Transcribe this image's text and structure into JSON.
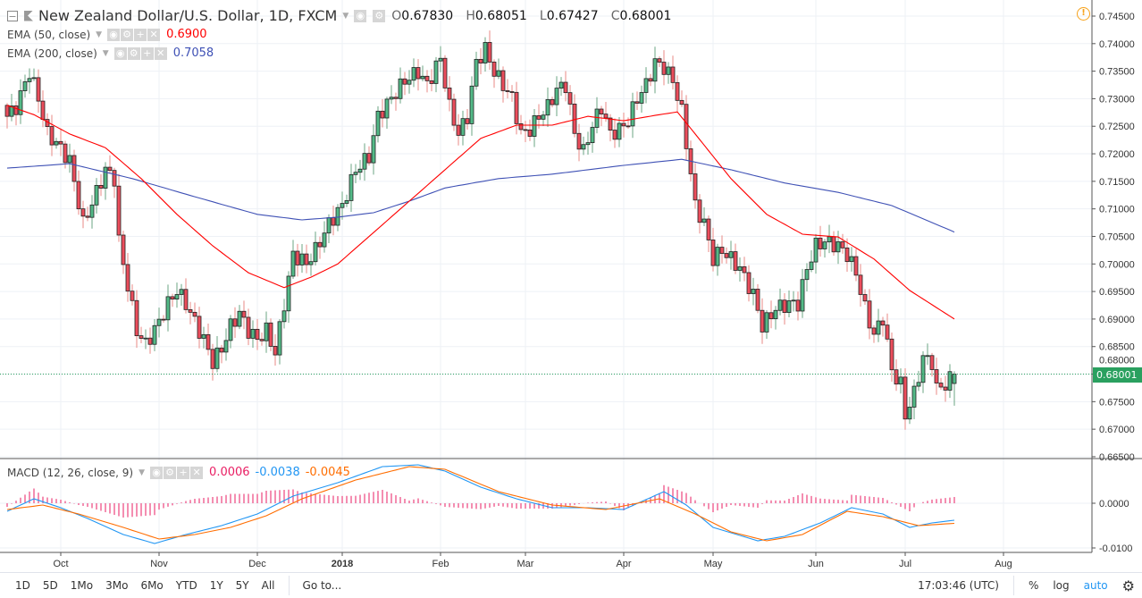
{
  "header": {
    "symbol": "New Zealand Dollar/U.S. Dollar, 1D, FXCM",
    "open_label": "O",
    "open": "0.67830",
    "high_label": "H",
    "high": "0.68051",
    "low_label": "L",
    "low": "0.67427",
    "close_label": "C",
    "close": "0.68001"
  },
  "indicators": {
    "ema50": {
      "label": "EMA (50, close)",
      "value": "0.6900",
      "color": "#ff0000"
    },
    "ema200": {
      "label": "EMA (200, close)",
      "value": "0.7058",
      "color": "#3f51b5"
    },
    "macd": {
      "label": "MACD (12, 26, close, 9)",
      "hist": "0.0006",
      "macd": "-0.0038",
      "signal": "-0.0045",
      "hist_color": "#e91e63",
      "macd_color": "#2196f3",
      "signal_color": "#ff6d00"
    }
  },
  "current_price": "0.68001",
  "toolbar": {
    "timeframes": [
      "1D",
      "5D",
      "1Mo",
      "3Mo",
      "6Mo",
      "YTD",
      "1Y",
      "5Y",
      "All"
    ],
    "goto": "Go to...",
    "clock": "17:03:46 (UTC)",
    "percent": "%",
    "log": "log",
    "auto": "auto"
  },
  "chart_data": {
    "type": "candlestick",
    "title": "New Zealand Dollar/U.S. Dollar, 1D, FXCM",
    "price_axis": {
      "min": 0.665,
      "max": 0.745,
      "step": 0.005,
      "ticks": [
        "0.74500",
        "0.74000",
        "0.73500",
        "0.73000",
        "0.72500",
        "0.72000",
        "0.71500",
        "0.71000",
        "0.70500",
        "0.70000",
        "0.69500",
        "0.69000",
        "0.68500",
        "0.68000",
        "0.67500",
        "0.67000",
        "0.66500"
      ]
    },
    "macd_axis": {
      "ticks": [
        "0.0000",
        "-0.0100"
      ]
    },
    "time_axis": [
      {
        "label": "Oct",
        "bar": 12
      },
      {
        "label": "Nov",
        "bar": 34
      },
      {
        "label": "Dec",
        "bar": 56
      },
      {
        "label": "2018",
        "bar": 75,
        "bold": true
      },
      {
        "label": "Feb",
        "bar": 97
      },
      {
        "label": "Mar",
        "bar": 116
      },
      {
        "label": "Apr",
        "bar": 138
      },
      {
        "label": "May",
        "bar": 158
      },
      {
        "label": "Jun",
        "bar": 181
      },
      {
        "label": "Jul",
        "bar": 201
      },
      {
        "label": "Aug",
        "bar": 223
      }
    ],
    "bars": 213,
    "last_bar": {
      "open": 0.6783,
      "high": 0.68051,
      "low": 0.67427,
      "close": 0.68001
    },
    "close_keypoints": [
      [
        0,
        0.7268
      ],
      [
        2,
        0.7285
      ],
      [
        5,
        0.7349
      ],
      [
        7,
        0.7301
      ],
      [
        9,
        0.7236
      ],
      [
        11,
        0.722
      ],
      [
        14,
        0.7187
      ],
      [
        17,
        0.7073
      ],
      [
        20,
        0.713
      ],
      [
        22,
        0.7171
      ],
      [
        24,
        0.7155
      ],
      [
        25,
        0.7041
      ],
      [
        27,
        0.696
      ],
      [
        29,
        0.6879
      ],
      [
        31,
        0.6854
      ],
      [
        34,
        0.6895
      ],
      [
        36,
        0.6928
      ],
      [
        38,
        0.6952
      ],
      [
        40,
        0.6928
      ],
      [
        42,
        0.6895
      ],
      [
        44,
        0.6863
      ],
      [
        46,
        0.6822
      ],
      [
        48,
        0.6846
      ],
      [
        50,
        0.6887
      ],
      [
        52,
        0.6911
      ],
      [
        54,
        0.6879
      ],
      [
        56,
        0.6863
      ],
      [
        58,
        0.6879
      ],
      [
        60,
        0.6838
      ],
      [
        62,
        0.6928
      ],
      [
        64,
        0.7017
      ],
      [
        67,
        0.7001
      ],
      [
        69,
        0.7025
      ],
      [
        72,
        0.7073
      ],
      [
        75,
        0.7106
      ],
      [
        78,
        0.7171
      ],
      [
        81,
        0.7195
      ],
      [
        83,
        0.7268
      ],
      [
        86,
        0.7301
      ],
      [
        89,
        0.7333
      ],
      [
        92,
        0.7349
      ],
      [
        94,
        0.7325
      ],
      [
        97,
        0.7374
      ],
      [
        99,
        0.7285
      ],
      [
        101,
        0.7236
      ],
      [
        103,
        0.7268
      ],
      [
        105,
        0.7366
      ],
      [
        107,
        0.739
      ],
      [
        109,
        0.7349
      ],
      [
        111,
        0.7325
      ],
      [
        113,
        0.7301
      ],
      [
        115,
        0.7236
      ],
      [
        117,
        0.7244
      ],
      [
        119,
        0.7268
      ],
      [
        121,
        0.7285
      ],
      [
        123,
        0.7317
      ],
      [
        125,
        0.7325
      ],
      [
        127,
        0.7236
      ],
      [
        129,
        0.7203
      ],
      [
        131,
        0.7252
      ],
      [
        133,
        0.7285
      ],
      [
        135,
        0.7236
      ],
      [
        137,
        0.7244
      ],
      [
        139,
        0.726
      ],
      [
        141,
        0.7301
      ],
      [
        143,
        0.7325
      ],
      [
        145,
        0.7366
      ],
      [
        147,
        0.7357
      ],
      [
        149,
        0.7333
      ],
      [
        151,
        0.7276
      ],
      [
        152,
        0.722
      ],
      [
        154,
        0.7106
      ],
      [
        156,
        0.7073
      ],
      [
        158,
        0.7009
      ],
      [
        160,
        0.7025
      ],
      [
        162,
        0.7009
      ],
      [
        164,
        0.6992
      ],
      [
        167,
        0.6944
      ],
      [
        169,
        0.6887
      ],
      [
        172,
        0.6919
      ],
      [
        175,
        0.6928
      ],
      [
        177,
        0.6928
      ],
      [
        179,
        0.6992
      ],
      [
        181,
        0.7033
      ],
      [
        183,
        0.7041
      ],
      [
        186,
        0.7033
      ],
      [
        188,
        0.7017
      ],
      [
        190,
        0.6984
      ],
      [
        192,
        0.6919
      ],
      [
        194,
        0.6871
      ],
      [
        196,
        0.6903
      ],
      [
        198,
        0.6806
      ],
      [
        200,
        0.6781
      ],
      [
        201,
        0.6725
      ],
      [
        203,
        0.6765
      ],
      [
        205,
        0.683
      ],
      [
        207,
        0.6822
      ],
      [
        208,
        0.6773
      ],
      [
        210,
        0.6781
      ],
      [
        212,
        0.68001
      ]
    ],
    "ema50_keypoints": [
      [
        0,
        0.7288
      ],
      [
        6,
        0.7271
      ],
      [
        14,
        0.7236
      ],
      [
        22,
        0.7211
      ],
      [
        30,
        0.7155
      ],
      [
        38,
        0.709
      ],
      [
        46,
        0.7033
      ],
      [
        54,
        0.6984
      ],
      [
        62,
        0.6957
      ],
      [
        68,
        0.6976
      ],
      [
        74,
        0.7
      ],
      [
        82,
        0.7057
      ],
      [
        90,
        0.7114
      ],
      [
        98,
        0.7171
      ],
      [
        106,
        0.7228
      ],
      [
        114,
        0.7252
      ],
      [
        122,
        0.7252
      ],
      [
        130,
        0.7268
      ],
      [
        138,
        0.726
      ],
      [
        146,
        0.7271
      ],
      [
        150,
        0.7276
      ],
      [
        154,
        0.7236
      ],
      [
        162,
        0.7155
      ],
      [
        170,
        0.709
      ],
      [
        178,
        0.7054
      ],
      [
        186,
        0.7049
      ],
      [
        194,
        0.7009
      ],
      [
        202,
        0.6952
      ],
      [
        212,
        0.69
      ]
    ],
    "ema200_keypoints": [
      [
        0,
        0.7174
      ],
      [
        14,
        0.7182
      ],
      [
        28,
        0.7155
      ],
      [
        42,
        0.7122
      ],
      [
        56,
        0.709
      ],
      [
        66,
        0.708
      ],
      [
        74,
        0.7085
      ],
      [
        82,
        0.7093
      ],
      [
        90,
        0.7114
      ],
      [
        98,
        0.7138
      ],
      [
        110,
        0.7155
      ],
      [
        122,
        0.7163
      ],
      [
        138,
        0.7179
      ],
      [
        151,
        0.719
      ],
      [
        162,
        0.7171
      ],
      [
        174,
        0.7147
      ],
      [
        186,
        0.713
      ],
      [
        198,
        0.7106
      ],
      [
        212,
        0.7058
      ]
    ],
    "macd_keypoints": [
      [
        0,
        -0.0018
      ],
      [
        6,
        0.001
      ],
      [
        12,
        -0.001
      ],
      [
        18,
        -0.0034
      ],
      [
        26,
        -0.007
      ],
      [
        33,
        -0.009
      ],
      [
        40,
        -0.007
      ],
      [
        48,
        -0.005
      ],
      [
        56,
        -0.0024
      ],
      [
        64,
        0.0016
      ],
      [
        74,
        0.0046
      ],
      [
        84,
        0.0082
      ],
      [
        92,
        0.0086
      ],
      [
        98,
        0.0072
      ],
      [
        106,
        0.0036
      ],
      [
        114,
        0.001
      ],
      [
        122,
        -0.001
      ],
      [
        130,
        -0.001
      ],
      [
        138,
        -0.0014
      ],
      [
        147,
        0.0026
      ],
      [
        152,
        -0.0004
      ],
      [
        158,
        -0.0054
      ],
      [
        168,
        -0.0084
      ],
      [
        174,
        -0.0074
      ],
      [
        182,
        -0.0044
      ],
      [
        189,
        -0.001
      ],
      [
        196,
        -0.0024
      ],
      [
        202,
        -0.0054
      ],
      [
        207,
        -0.0044
      ],
      [
        212,
        -0.0038
      ]
    ],
    "signal_keypoints": [
      [
        0,
        -0.0014
      ],
      [
        8,
        -0.0004
      ],
      [
        16,
        -0.0024
      ],
      [
        26,
        -0.0054
      ],
      [
        34,
        -0.008
      ],
      [
        42,
        -0.007
      ],
      [
        50,
        -0.0054
      ],
      [
        58,
        -0.0028
      ],
      [
        66,
        0.001
      ],
      [
        78,
        0.0052
      ],
      [
        90,
        0.0082
      ],
      [
        98,
        0.0076
      ],
      [
        110,
        0.0026
      ],
      [
        122,
        -0.0004
      ],
      [
        134,
        -0.0014
      ],
      [
        146,
        0.001
      ],
      [
        154,
        -0.0024
      ],
      [
        162,
        -0.0064
      ],
      [
        170,
        -0.0084
      ],
      [
        178,
        -0.007
      ],
      [
        188,
        -0.0018
      ],
      [
        196,
        -0.003
      ],
      [
        204,
        -0.005
      ],
      [
        212,
        -0.0045
      ]
    ]
  }
}
